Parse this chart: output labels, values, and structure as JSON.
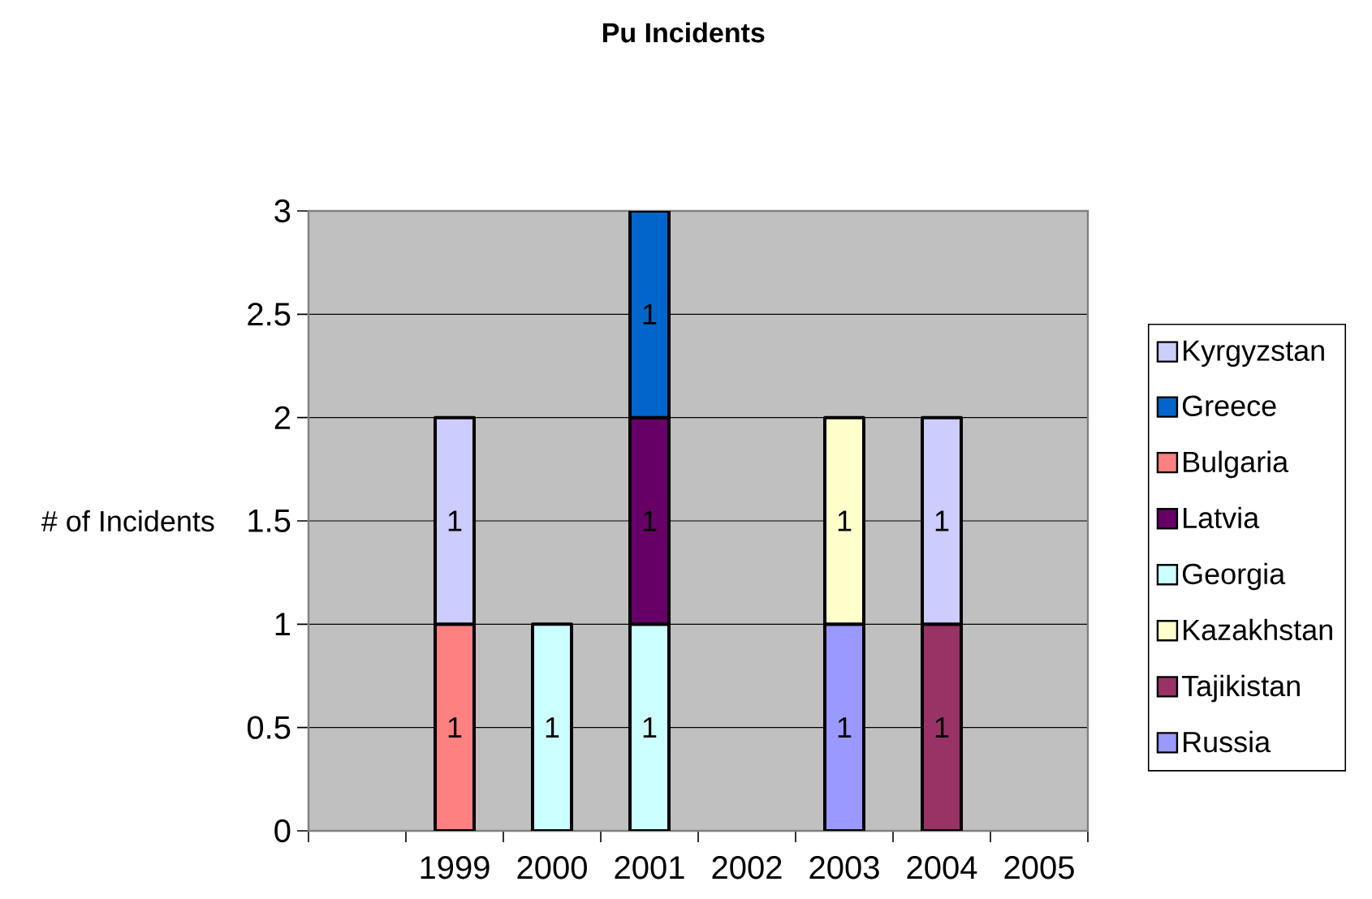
{
  "chart_data": {
    "type": "bar",
    "title": "Pu Incidents",
    "ylabel": "# of Incidents",
    "categories": [
      null,
      "1999",
      "2000",
      "2001",
      "2002",
      "2003",
      "2004",
      "2005"
    ],
    "series": [
      {
        "name": "Russia",
        "color": "#9999ff",
        "values": [
          null,
          null,
          null,
          null,
          null,
          1,
          null,
          null
        ]
      },
      {
        "name": "Tajikistan",
        "color": "#993366",
        "values": [
          null,
          null,
          null,
          null,
          null,
          null,
          1,
          null
        ]
      },
      {
        "name": "Kazakhstan",
        "color": "#ffffcc",
        "values": [
          null,
          null,
          null,
          null,
          null,
          1,
          null,
          null
        ]
      },
      {
        "name": "Georgia",
        "color": "#ccffff",
        "values": [
          null,
          null,
          1,
          1,
          null,
          null,
          null,
          null
        ]
      },
      {
        "name": "Latvia",
        "color": "#660066",
        "values": [
          null,
          null,
          null,
          1,
          null,
          null,
          null,
          null
        ]
      },
      {
        "name": "Bulgaria",
        "color": "#ff8080",
        "values": [
          null,
          1,
          null,
          null,
          null,
          null,
          null,
          null
        ]
      },
      {
        "name": "Greece",
        "color": "#0066cc",
        "values": [
          null,
          null,
          null,
          1,
          null,
          null,
          null,
          null
        ]
      },
      {
        "name": "Kyrgyzstan",
        "color": "#ccccff",
        "values": [
          null,
          1,
          null,
          null,
          null,
          null,
          1,
          null
        ]
      }
    ],
    "stacked": true,
    "ylim": [
      0,
      3
    ],
    "yticks": [
      0,
      0.5,
      1,
      1.5,
      2,
      2.5,
      3
    ],
    "grid": "y",
    "legend": "right",
    "data_labels": true
  }
}
